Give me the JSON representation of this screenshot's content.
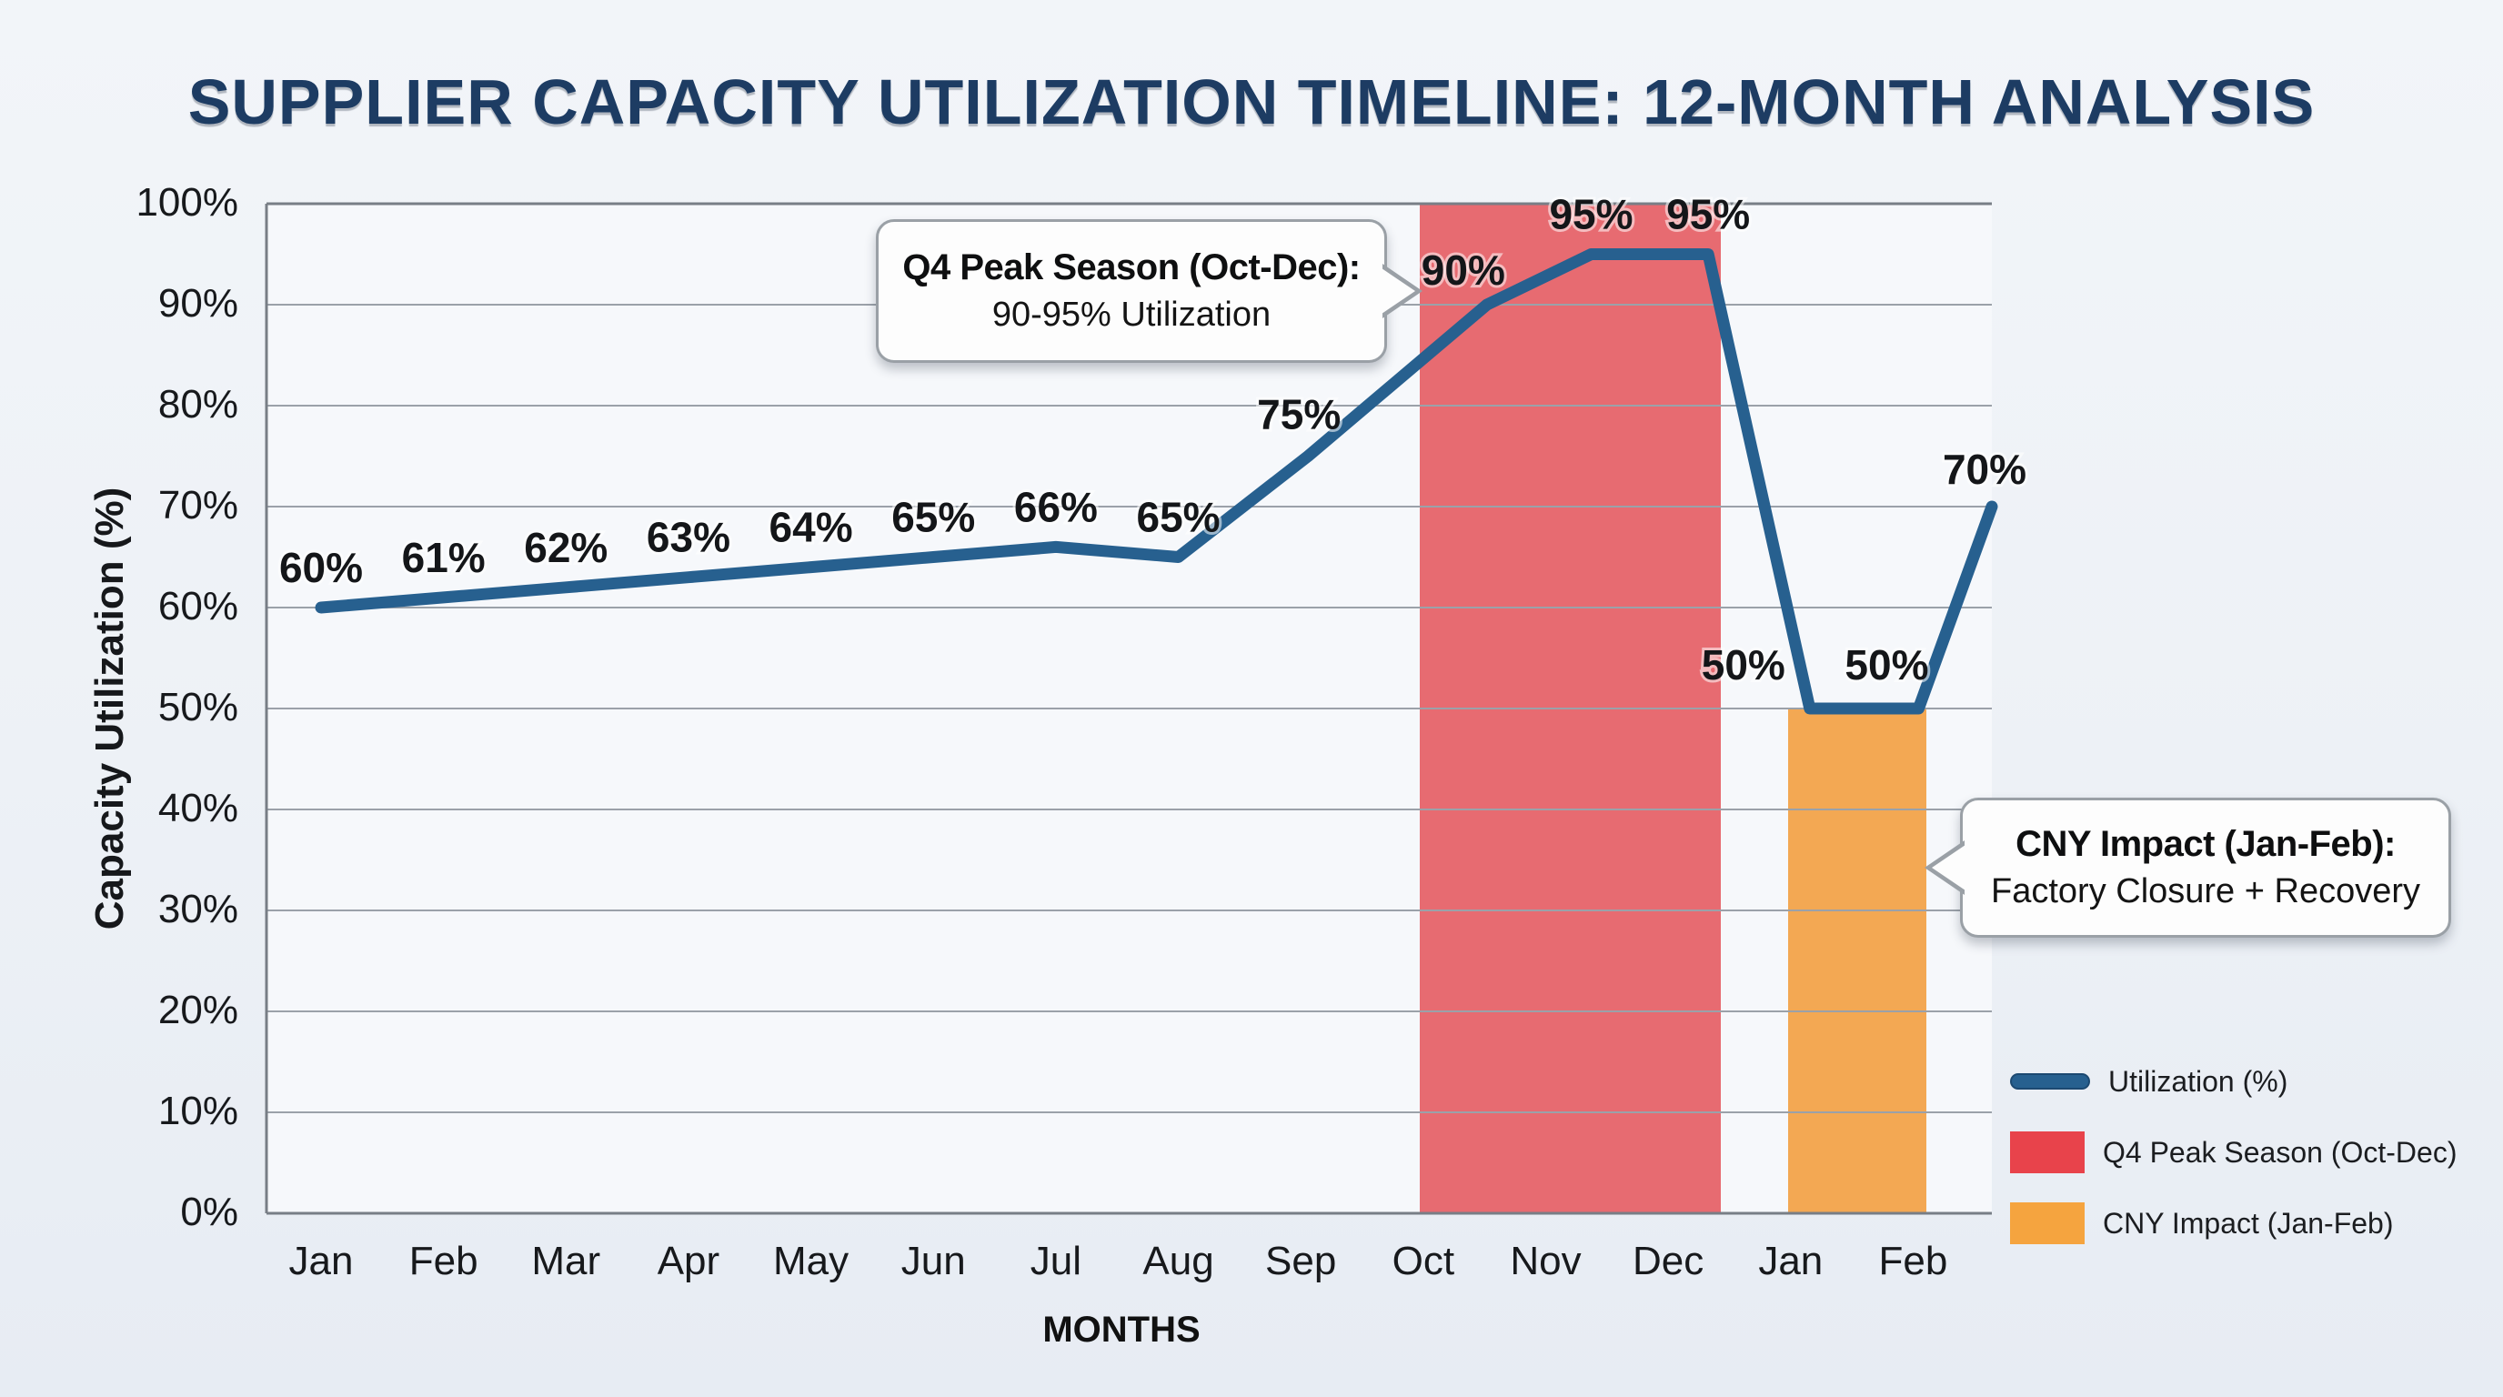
{
  "page": {
    "title": "SUPPLIER CAPACITY UTILIZATION TIMELINE: 12-MONTH ANALYSIS"
  },
  "chart_data": {
    "type": "line",
    "title": "SUPPLIER CAPACITY UTILIZATION TIMELINE: 12-MONTH ANALYSIS",
    "xlabel": "MONTHS",
    "ylabel": "Capacity Utilization (%)",
    "ylim": [
      0,
      100
    ],
    "ytick_step": 10,
    "ytick_labels": [
      "100%",
      "90%",
      "80%",
      "70%",
      "60%",
      "50%",
      "40%",
      "30%",
      "20%",
      "10%",
      "0%"
    ],
    "categories": [
      "Jan",
      "Feb",
      "Mar",
      "Apr",
      "May",
      "Jun",
      "Jul",
      "Aug",
      "Sep",
      "Oct",
      "Nov",
      "Dec",
      "Jan",
      "Feb"
    ],
    "grid": "horizontal",
    "legend_position": "lower right",
    "series": [
      {
        "name": "Utilization (%)",
        "color": "#27608f",
        "values": [
          60,
          61,
          62,
          63,
          64,
          65,
          66,
          65,
          75,
          90,
          95,
          95,
          50,
          50
        ],
        "edge_point_value": 70,
        "point_labels": [
          "60%",
          "61%",
          "62%",
          "63%",
          "64%",
          "65%",
          "66%",
          "65%",
          "75%",
          "90%",
          "95%",
          "95%",
          "50%",
          "50%",
          "70%"
        ]
      }
    ],
    "bands": [
      {
        "name": "Q4 Peak Season (Oct-Dec)",
        "months": "Oct-Dec",
        "from_value": 0,
        "to_value": 100,
        "color": "#e76b71"
      },
      {
        "name": "CNY Impact (Jan-Feb)",
        "months": "Jan-Feb",
        "from_value": 0,
        "to_value": 50,
        "color": "#f3a853"
      }
    ]
  },
  "annotations": {
    "q4": {
      "line1": "Q4 Peak Season (Oct-Dec):",
      "line2": "90-95% Utilization"
    },
    "cny": {
      "line1": "CNY Impact (Jan-Feb):",
      "line2": "Factory Closure + Recovery"
    }
  },
  "legend": {
    "items": [
      {
        "label": "Utilization (%)",
        "swatch": "line",
        "color": "#27608f"
      },
      {
        "label": "Q4 Peak Season (Oct-Dec)",
        "swatch": "rect",
        "color": "#e8434b"
      },
      {
        "label": "CNY Impact (Jan-Feb)",
        "swatch": "rect",
        "color": "#f5a43f"
      }
    ]
  }
}
